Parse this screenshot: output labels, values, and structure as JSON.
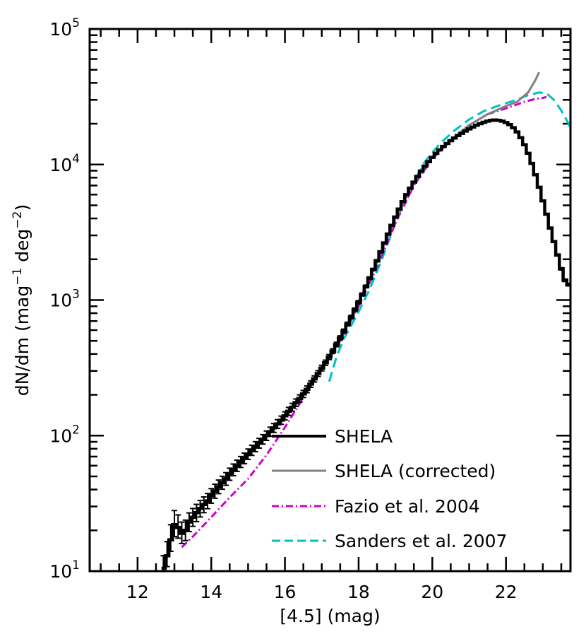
{
  "chart_data": {
    "type": "line",
    "xlabel": "[4.5] (mag)",
    "ylabel": {
      "main": "dN/dm (mag",
      "exp1": "−1",
      "mid": " deg",
      "exp2": "−2",
      "end": ")"
    },
    "xlim": [
      10.7,
      23.75
    ],
    "ylim": [
      10,
      100000
    ],
    "y_scale": "log",
    "x_ticks": [
      12,
      14,
      16,
      18,
      20,
      22
    ],
    "x_tick_labels": [
      "12",
      "14",
      "16",
      "18",
      "20",
      "22"
    ],
    "y_ticks": [
      10,
      100,
      1000,
      10000,
      100000
    ],
    "y_tick_labels": [
      {
        "base": "10",
        "exp": "1"
      },
      {
        "base": "10",
        "exp": "2"
      },
      {
        "base": "10",
        "exp": "3"
      },
      {
        "base": "10",
        "exp": "4"
      },
      {
        "base": "10",
        "exp": "5"
      }
    ],
    "legend_position": "bottom-right",
    "series": [
      {
        "name": "SHELA",
        "color": "#000000",
        "style": "steps-errorbars",
        "x": [
          12.7,
          12.8,
          12.9,
          13.0,
          13.1,
          13.2,
          13.3,
          13.4,
          13.5,
          13.6,
          13.7,
          13.8,
          13.9,
          14.0,
          14.1,
          14.2,
          14.3,
          14.4,
          14.5,
          14.6,
          14.7,
          14.8,
          14.9,
          15.0,
          15.1,
          15.2,
          15.3,
          15.4,
          15.5,
          15.6,
          15.7,
          15.8,
          15.9,
          16.0,
          16.1,
          16.2,
          16.3,
          16.4,
          16.5,
          16.6,
          16.7,
          16.8,
          16.9,
          17.0,
          17.1,
          17.2,
          17.3,
          17.4,
          17.5,
          17.6,
          17.7,
          17.8,
          17.9,
          18.0,
          18.1,
          18.2,
          18.3,
          18.4,
          18.5,
          18.6,
          18.7,
          18.8,
          18.9,
          19.0,
          19.1,
          19.2,
          19.3,
          19.4,
          19.5,
          19.6,
          19.7,
          19.8,
          19.9,
          20.0,
          20.1,
          20.2,
          20.3,
          20.4,
          20.5,
          20.6,
          20.7,
          20.8,
          20.9,
          21.0,
          21.1,
          21.2,
          21.3,
          21.4,
          21.5,
          21.6,
          21.7,
          21.8,
          21.9,
          22.0,
          22.1,
          22.2,
          22.3,
          22.4,
          22.5,
          22.6,
          22.7,
          22.8,
          22.9,
          23.0,
          23.1,
          23.2,
          23.3,
          23.4,
          23.5,
          23.6,
          23.7
        ],
        "y": [
          10.5,
          13,
          17,
          22,
          21,
          19,
          20,
          23,
          25,
          27,
          29,
          31,
          33,
          36,
          39,
          42,
          45,
          48,
          52,
          56,
          60,
          64,
          68,
          73,
          78,
          83,
          88,
          94,
          100,
          107,
          114,
          122,
          130,
          140,
          151,
          162,
          175,
          188,
          203,
          220,
          240,
          262,
          287,
          315,
          345,
          380,
          420,
          470,
          525,
          590,
          665,
          750,
          850,
          965,
          1100,
          1260,
          1450,
          1680,
          1950,
          2270,
          2640,
          3070,
          3560,
          4100,
          4690,
          5320,
          5990,
          6690,
          7420,
          8170,
          8940,
          9720,
          10500,
          11300,
          12100,
          12850,
          13600,
          14300,
          15000,
          15700,
          16350,
          17000,
          17650,
          18300,
          18900,
          19500,
          20000,
          20500,
          20900,
          21200,
          21300,
          21200,
          20900,
          20400,
          19700,
          18700,
          17400,
          15800,
          14000,
          12100,
          10200,
          8400,
          6800,
          5400,
          4300,
          3400,
          2700,
          2150,
          1700,
          1400,
          1300
        ],
        "yerr_low": [
          1.8,
          2.2,
          3.0,
          4.0,
          3.5,
          3.0,
          3.2,
          3.4,
          3.6,
          3.8,
          3.9,
          4.0,
          4.1,
          4.3,
          4.5,
          4.7,
          4.8,
          5.0,
          5.2,
          5.4,
          5.6,
          5.8,
          6.0,
          6.3,
          6.6,
          6.9,
          7.1,
          7.4,
          7.8,
          8.1,
          8.4,
          8.8,
          9.0,
          9.5,
          10,
          10.5,
          11,
          11.5,
          12,
          12.5,
          13,
          13.5,
          14,
          15,
          15,
          16,
          17,
          18,
          19,
          20,
          21,
          22,
          24,
          25,
          27,
          29,
          31,
          33,
          35,
          38,
          41,
          44,
          47,
          50,
          53,
          57,
          60,
          63,
          67,
          71,
          74,
          78,
          81,
          85,
          88,
          91,
          94,
          96,
          99,
          101,
          103,
          106,
          108,
          110,
          112,
          114,
          115,
          117,
          118,
          119,
          119,
          119,
          118,
          117,
          115,
          112,
          108,
          103,
          97,
          90,
          83,
          75,
          67,
          60,
          53,
          47,
          42,
          37,
          33,
          30,
          29
        ],
        "yerr_high": [
          2.5,
          3.5,
          5.0,
          6.0,
          5.0,
          4.0,
          3.8,
          3.9,
          4.0,
          4.1,
          4.2,
          4.3,
          4.4,
          4.6,
          4.8,
          5.0,
          5.1,
          5.3,
          5.5,
          5.7,
          5.9,
          6.1,
          6.3,
          6.6,
          6.9,
          7.2,
          7.4,
          7.7,
          8.1,
          8.4,
          8.7,
          9.1,
          9.3,
          9.8,
          10.3,
          10.8,
          11.3,
          11.8,
          12.3,
          12.8,
          13.3,
          13.8,
          14.3,
          15.3,
          15.3,
          16.3,
          17.3,
          18.3,
          19.3,
          20.3,
          21.3,
          22.3,
          24.3,
          25.3,
          27.3,
          29.3,
          31.3,
          33.3,
          35.3,
          38.3,
          41.3,
          44.3,
          47.3,
          50.3,
          53.3,
          57.3,
          60.3,
          63.3,
          67.3,
          71.3,
          74.3,
          78.3,
          81.3,
          85.3,
          88.3,
          91.3,
          94.3,
          96.3,
          99.3,
          101,
          103,
          106,
          108,
          110,
          112,
          114,
          115,
          117,
          118,
          119,
          119,
          119,
          118,
          117,
          115,
          112,
          108,
          103,
          97,
          90,
          83,
          75,
          67,
          60,
          53,
          47,
          42,
          37,
          33,
          30,
          29
        ]
      },
      {
        "name": "SHELA (corrected)",
        "color": "#808080",
        "style": "solid",
        "x": [
          17.5,
          18.0,
          18.5,
          19.0,
          19.5,
          20.0,
          20.5,
          21.0,
          21.5,
          22.0,
          22.3,
          22.6,
          22.8,
          22.9
        ],
        "y": [
          525,
          965,
          1900,
          4000,
          7400,
          11300,
          15200,
          19500,
          23500,
          27000,
          29000,
          34000,
          42000,
          48000
        ]
      },
      {
        "name": "Fazio et al. 2004",
        "color": "#cc00cc",
        "style": "dash-dot",
        "x": [
          13.2,
          13.5,
          14.0,
          14.5,
          15.0,
          15.5,
          16.0,
          16.5,
          17.0,
          17.5,
          18.0,
          18.5,
          19.0,
          19.5,
          20.0,
          20.5,
          21.0,
          21.5,
          22.0,
          22.5,
          22.8,
          23.0,
          23.1
        ],
        "y": [
          15,
          18,
          25,
          35,
          48,
          72,
          115,
          190,
          310,
          500,
          900,
          1750,
          3700,
          7000,
          11000,
          15000,
          19500,
          23500,
          26000,
          29000,
          30500,
          31000,
          31500
        ]
      },
      {
        "name": "Sanders et al. 2007",
        "color": "#00c0c0",
        "style": "dashed",
        "x": [
          17.2,
          17.4,
          17.6,
          17.8,
          18.0,
          18.3,
          18.6,
          19.0,
          19.4,
          19.8,
          20.2,
          20.6,
          21.0,
          21.4,
          21.8,
          22.2,
          22.6,
          22.9,
          23.1,
          23.3,
          23.5,
          23.7,
          23.75
        ],
        "y": [
          250,
          380,
          520,
          650,
          820,
          1200,
          1900,
          3700,
          6700,
          10500,
          14200,
          17800,
          21500,
          24800,
          27200,
          29500,
          32500,
          34000,
          33500,
          30000,
          25000,
          20000,
          18000
        ]
      }
    ]
  }
}
